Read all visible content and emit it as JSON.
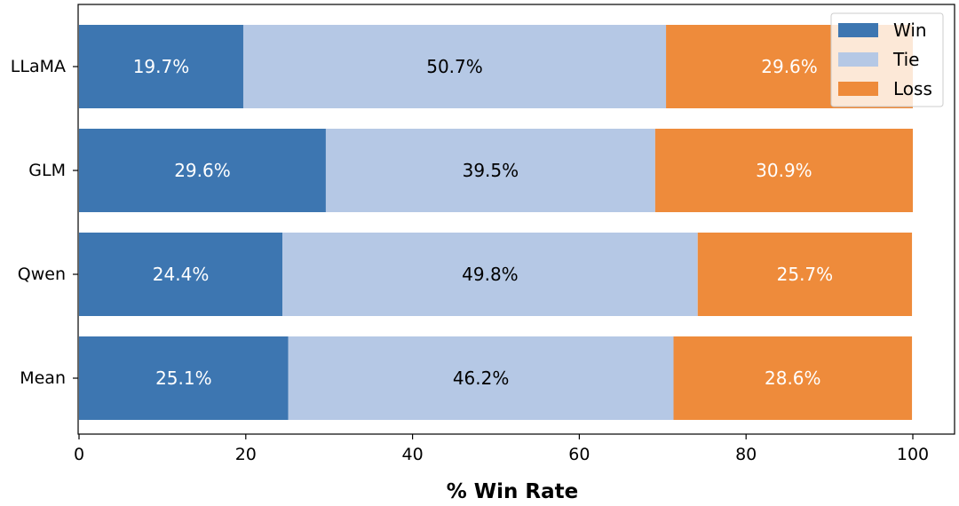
{
  "chart_data": {
    "type": "bar",
    "orientation": "horizontal",
    "stacked": true,
    "categories": [
      "LLaMA",
      "GLM",
      "Qwen",
      "Mean"
    ],
    "series": [
      {
        "name": "Win",
        "color": "#3d76b1",
        "label_color": "#ffffff",
        "values": [
          19.7,
          29.6,
          24.4,
          25.1
        ],
        "labels": [
          "19.7%",
          "29.6%",
          "24.4%",
          "25.1%"
        ]
      },
      {
        "name": "Tie",
        "color": "#b5c8e5",
        "label_color": "#000000",
        "values": [
          50.7,
          39.5,
          49.8,
          46.2
        ],
        "labels": [
          "50.7%",
          "39.5%",
          "49.8%",
          "46.2%"
        ]
      },
      {
        "name": "Loss",
        "color": "#ee8b3b",
        "label_color": "#ffffff",
        "values": [
          29.6,
          30.9,
          25.7,
          28.6
        ],
        "labels": [
          "29.6%",
          "30.9%",
          "25.7%",
          "28.6%"
        ]
      }
    ],
    "title": "",
    "xlabel": "% Win Rate",
    "ylabel": "",
    "xlim": [
      0,
      100
    ],
    "xticks": [
      "0",
      "20",
      "40",
      "60",
      "80",
      "100"
    ],
    "grid": false,
    "legend_position": "top-right"
  }
}
